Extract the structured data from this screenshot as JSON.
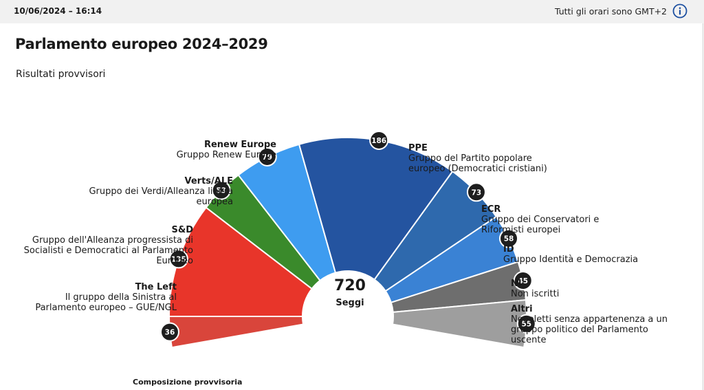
{
  "header": {
    "date": "10/06/2024 – 16:14",
    "timezone_note": "Tutti gli orari sono GMT+2"
  },
  "title": "Parlamento europeo 2024–2029",
  "subtitle": "Risultati provvisori",
  "footer_note": "Composizione provvisoria",
  "chart_data": {
    "type": "pie",
    "shape": "hemicycle",
    "total": 720,
    "total_label": "Seggi",
    "series": [
      {
        "name": "The Left",
        "full": "Il gruppo della Sinistra al Parlamento europeo – GUE/NGL",
        "value": 36,
        "color": "#d9453b"
      },
      {
        "name": "S&D",
        "full": "Gruppo dell'Alleanza progressista di Socialisti e Democratici al Parlamento Europeo",
        "value": 135,
        "color": "#e8352a"
      },
      {
        "name": "Verts/ALE",
        "full": "Gruppo dei Verdi/Alleanza libera europea",
        "value": 53,
        "color": "#3a8a2b"
      },
      {
        "name": "Renew Europe",
        "full": "Gruppo Renew Europe",
        "value": 79,
        "color": "#3e9cf0"
      },
      {
        "name": "PPE",
        "full": "Gruppo del Partito popolare europeo (Democratici cristiani)",
        "value": 186,
        "color": "#2454a0"
      },
      {
        "name": "ECR",
        "full": "Gruppo dei Conservatori e Riformisti europei",
        "value": 73,
        "color": "#2e69ad"
      },
      {
        "name": "ID",
        "full": "Gruppo Identità e Democrazia",
        "value": 58,
        "color": "#3a82d4"
      },
      {
        "name": "NI",
        "full": "Non iscritti",
        "value": 45,
        "color": "#6e6e6e"
      },
      {
        "name": "Altri",
        "full": "Neoeletti senza appartenenza a un gruppo politico del Parlamento uscente",
        "value": 55,
        "color": "#9e9e9e"
      }
    ]
  }
}
